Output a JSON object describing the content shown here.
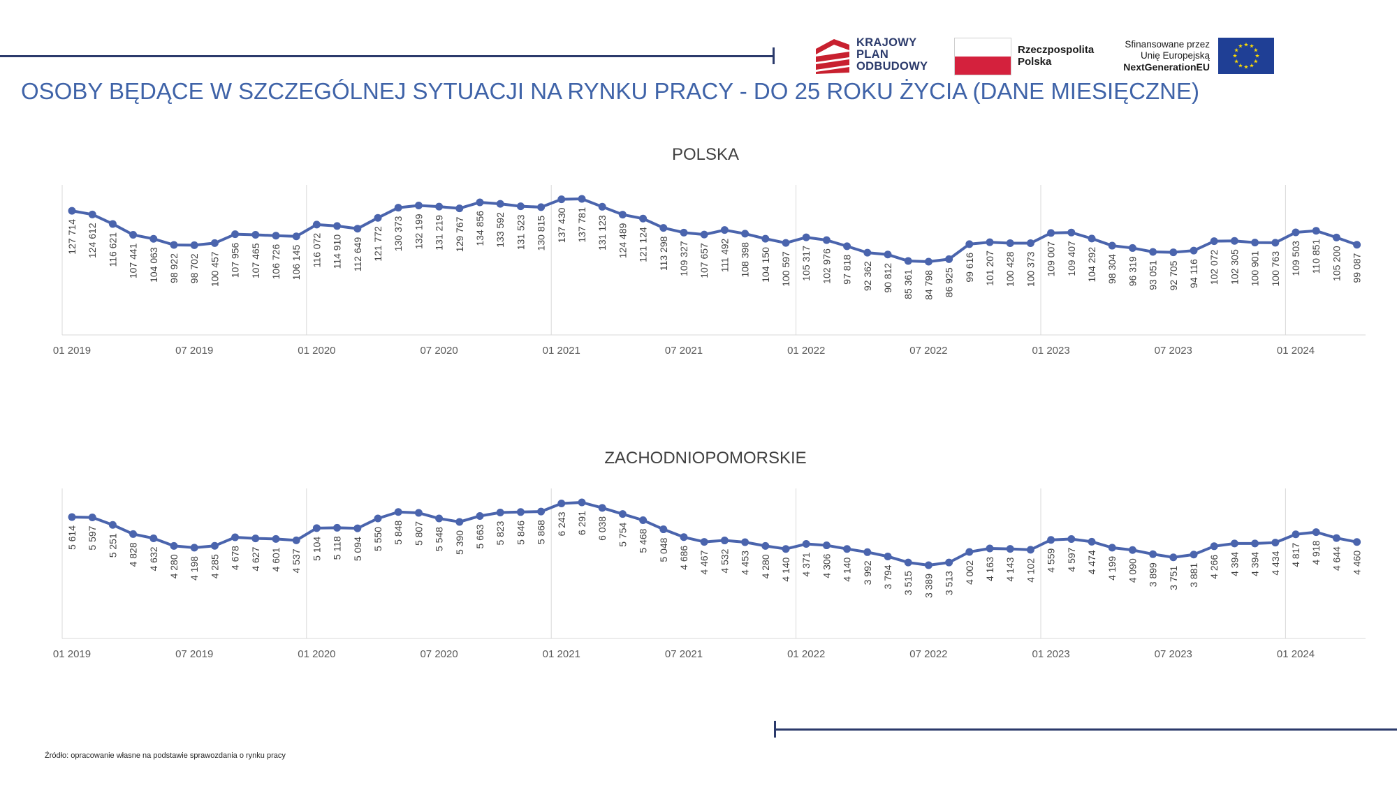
{
  "header": {
    "title": "OSOBY BĘDĄCE W SZCZEGÓLNEJ SYTUACJI NA RYNKU PRACY - DO 25 ROKU ŻYCIA (DANE MIESIĘCZNE)",
    "logo_kpo": {
      "line1": "KRAJOWY",
      "line2": "PLAN",
      "line3": "ODBUDOWY"
    },
    "logo_rp": {
      "line1": "Rzeczpospolita",
      "line2": "Polska"
    },
    "logo_eu": {
      "line1": "Sfinansowane przez",
      "line2": "Unię Europejską",
      "line3": "NextGenerationEU"
    },
    "colors": {
      "title": "#3f63a8",
      "rule": "#2b3a6b",
      "kpo_red": "#c8202f",
      "flag_red": "#d4213d",
      "eu_blue": "#1f3f95",
      "eu_star": "#ffdd00"
    }
  },
  "source": "Źródło: opracowanie własne na podstawie sprawozdania o rynku pracy",
  "chart_data": [
    {
      "type": "line",
      "title": "POLSKA",
      "x_tick_labels": [
        "01 2019",
        "07 2019",
        "01 2020",
        "07 2020",
        "01 2021",
        "07 2021",
        "01 2022",
        "07 2022",
        "01 2023",
        "07 2023",
        "01 2024"
      ],
      "x": [
        "01 2019",
        "02 2019",
        "03 2019",
        "04 2019",
        "05 2019",
        "06 2019",
        "07 2019",
        "08 2019",
        "09 2019",
        "10 2019",
        "11 2019",
        "12 2019",
        "01 2020",
        "02 2020",
        "03 2020",
        "04 2020",
        "05 2020",
        "06 2020",
        "07 2020",
        "08 2020",
        "09 2020",
        "10 2020",
        "11 2020",
        "12 2020",
        "01 2021",
        "02 2021",
        "03 2021",
        "04 2021",
        "05 2021",
        "06 2021",
        "07 2021",
        "08 2021",
        "09 2021",
        "10 2021",
        "11 2021",
        "12 2021",
        "01 2022",
        "02 2022",
        "03 2022",
        "04 2022",
        "05 2022",
        "06 2022",
        "07 2022",
        "08 2022",
        "09 2022",
        "10 2022",
        "11 2022",
        "12 2022",
        "01 2023",
        "02 2023",
        "03 2023",
        "04 2023",
        "05 2023",
        "06 2023",
        "07 2023",
        "08 2023",
        "09 2023",
        "10 2023",
        "11 2023",
        "12 2023",
        "01 2024",
        "02 2024",
        "03 2024",
        "04 2024"
      ],
      "values": [
        127714,
        124612,
        116621,
        107441,
        104063,
        98922,
        98702,
        100457,
        107956,
        107465,
        106726,
        106145,
        116072,
        114910,
        112649,
        121772,
        130373,
        132199,
        131219,
        129767,
        134856,
        133592,
        131523,
        130815,
        137430,
        137781,
        131123,
        124489,
        121124,
        113298,
        109327,
        107657,
        111492,
        108398,
        104150,
        100597,
        105317,
        102976,
        97818,
        92362,
        90812,
        85361,
        84798,
        86925,
        99616,
        101207,
        100428,
        100373,
        109007,
        109407,
        104292,
        98304,
        96319,
        93051,
        92705,
        94116,
        102072,
        102305,
        100901,
        100763,
        109503,
        110851,
        105200,
        99087
      ],
      "labels": [
        "127 714",
        "124 612",
        "116 621",
        "107 441",
        "104 063",
        "98 922",
        "98 702",
        "100 457",
        "107 956",
        "107 465",
        "106 726",
        "106 145",
        "116 072",
        "114 910",
        "112 649",
        "121 772",
        "130 373",
        "132 199",
        "131 219",
        "129 767",
        "134 856",
        "133 592",
        "131 523",
        "130 815",
        "137 430",
        "137 781",
        "131 123",
        "124 489",
        "121 124",
        "113 298",
        "109 327",
        "107 657",
        "111 492",
        "108 398",
        "104 150",
        "100 597",
        "105 317",
        "102 976",
        "97 818",
        "92 362",
        "90 812",
        "85 361",
        "84 798",
        "86 925",
        "99 616",
        "101 207",
        "100 428",
        "100 373",
        "109 007",
        "109 407",
        "104 292",
        "98 304",
        "96 319",
        "93 051",
        "92 705",
        "94 116",
        "102 072",
        "102 305",
        "100 901",
        "100 763",
        "109 503",
        "110 851",
        "105 200",
        "99 087"
      ],
      "color": "#4a64ad"
    },
    {
      "type": "line",
      "title": "ZACHODNIOPOMORSKIE",
      "x_tick_labels": [
        "01 2019",
        "07 2019",
        "01 2020",
        "07 2020",
        "01 2021",
        "07 2021",
        "01 2022",
        "07 2022",
        "01 2023",
        "07 2023",
        "01 2024"
      ],
      "x": [
        "01 2019",
        "02 2019",
        "03 2019",
        "04 2019",
        "05 2019",
        "06 2019",
        "07 2019",
        "08 2019",
        "09 2019",
        "10 2019",
        "11 2019",
        "12 2019",
        "01 2020",
        "02 2020",
        "03 2020",
        "04 2020",
        "05 2020",
        "06 2020",
        "07 2020",
        "08 2020",
        "09 2020",
        "10 2020",
        "11 2020",
        "12 2020",
        "01 2021",
        "02 2021",
        "03 2021",
        "04 2021",
        "05 2021",
        "06 2021",
        "07 2021",
        "08 2021",
        "09 2021",
        "10 2021",
        "11 2021",
        "12 2021",
        "01 2022",
        "02 2022",
        "03 2022",
        "04 2022",
        "05 2022",
        "06 2022",
        "07 2022",
        "08 2022",
        "09 2022",
        "10 2022",
        "11 2022",
        "12 2022",
        "01 2023",
        "02 2023",
        "03 2023",
        "04 2023",
        "05 2023",
        "06 2023",
        "07 2023",
        "08 2023",
        "09 2023",
        "10 2023",
        "11 2023",
        "12 2023",
        "01 2024",
        "02 2024",
        "03 2024",
        "04 2024"
      ],
      "values": [
        5614,
        5597,
        5251,
        4828,
        4632,
        4280,
        4198,
        4285,
        4678,
        4627,
        4601,
        4537,
        5104,
        5118,
        5094,
        5550,
        5848,
        5807,
        5548,
        5390,
        5663,
        5823,
        5846,
        5868,
        6243,
        6291,
        6038,
        5754,
        5468,
        5048,
        4686,
        4467,
        4532,
        4453,
        4280,
        4140,
        4371,
        4306,
        4140,
        3992,
        3794,
        3515,
        3389,
        3513,
        4002,
        4163,
        4143,
        4102,
        4559,
        4597,
        4474,
        4199,
        4090,
        3899,
        3751,
        3881,
        4266,
        4394,
        4394,
        4434,
        4817,
        4918,
        4644,
        4460
      ],
      "labels": [
        "5 614",
        "5 597",
        "5 251",
        "4 828",
        "4 632",
        "4 280",
        "4 198",
        "4 285",
        "4 678",
        "4 627",
        "4 601",
        "4 537",
        "5 104",
        "5 118",
        "5 094",
        "5 550",
        "5 848",
        "5 807",
        "5 548",
        "5 390",
        "5 663",
        "5 823",
        "5 846",
        "5 868",
        "6 243",
        "6 291",
        "6 038",
        "5 754",
        "5 468",
        "5 048",
        "4 686",
        "4 467",
        "4 532",
        "4 453",
        "4 280",
        "4 140",
        "4 371",
        "4 306",
        "4 140",
        "3 992",
        "3 794",
        "3 515",
        "3 389",
        "3 513",
        "4 002",
        "4 163",
        "4 143",
        "4 102",
        "4 559",
        "4 597",
        "4 474",
        "4 199",
        "4 090",
        "3 899",
        "3 751",
        "3 881",
        "4 266",
        "4 394",
        "4 394",
        "4 434",
        "4 817",
        "4 918",
        "4 644",
        "4 460"
      ],
      "color": "#4a64ad"
    }
  ]
}
